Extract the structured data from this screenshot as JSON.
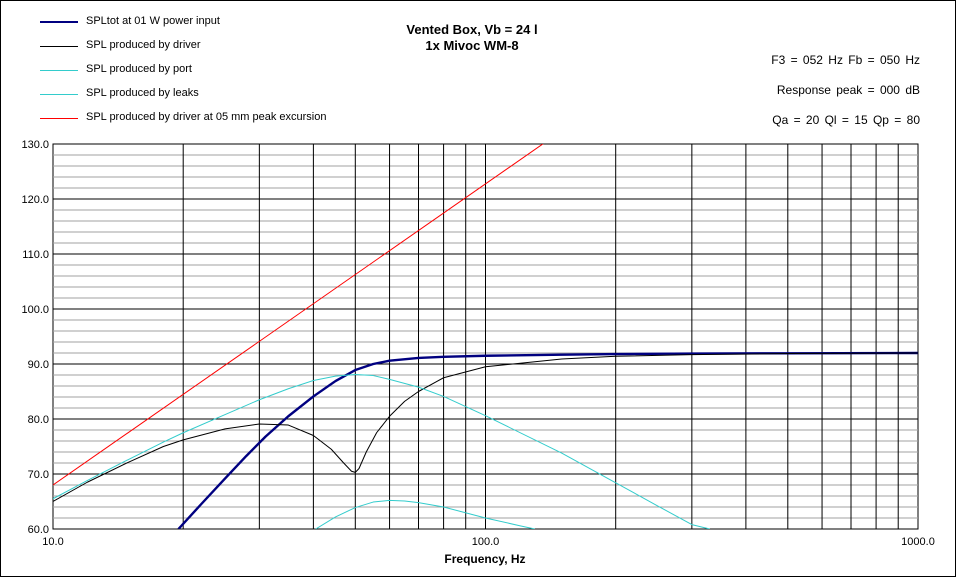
{
  "chart_data": {
    "type": "line",
    "title_line1": "Vented Box, Vb = 24 l",
    "title_line2": "1x Mivoc WM-8",
    "info": [
      "F3 = 052 Hz  Fb = 050 Hz",
      "Response  peak = 000 dB",
      "Qa = 20  Ql = 15  Qp = 80"
    ],
    "xlabel": "Frequency, Hz",
    "ylabel": "",
    "x_scale": "log",
    "xlim": [
      10,
      1000
    ],
    "ylim": [
      60,
      130
    ],
    "x_ticks": [
      "10.0",
      "100.0",
      "1000.0"
    ],
    "y_ticks": [
      "60.0",
      "70.0",
      "80.0",
      "90.0",
      "100.0",
      "110.0",
      "120.0",
      "130.0"
    ],
    "grid": true,
    "legend_position": "top-left",
    "series": [
      {
        "name": "SPLtot at 01 W power input",
        "color": "#000080",
        "thick": true,
        "x": [
          19.5,
          22,
          25,
          28,
          31,
          35,
          40,
          45,
          50,
          55,
          60,
          70,
          80,
          100,
          150,
          200,
          300,
          500,
          1000
        ],
        "y": [
          60,
          64.5,
          69.2,
          73.3,
          76.8,
          80.5,
          84.1,
          86.9,
          88.9,
          90,
          90.6,
          91.1,
          91.3,
          91.5,
          91.7,
          91.8,
          91.9,
          91.95,
          92
        ]
      },
      {
        "name": "SPL produced by driver",
        "color": "#000000",
        "thick": false,
        "x": [
          10,
          12,
          15,
          18,
          20,
          25,
          30,
          35,
          40,
          44,
          47,
          49,
          50,
          51,
          53,
          56,
          60,
          65,
          70,
          80,
          100,
          150,
          200,
          300,
          500,
          1000
        ],
        "y": [
          65,
          68.5,
          72.2,
          75,
          76.2,
          78.2,
          79.1,
          78.9,
          77,
          74.5,
          72,
          70.5,
          70.3,
          71,
          74,
          77.5,
          80.5,
          83.2,
          85,
          87.5,
          89.5,
          90.9,
          91.4,
          91.7,
          91.9,
          92
        ]
      },
      {
        "name": "SPL produced by port",
        "color": "#33cccc",
        "thick": false,
        "x": [
          10,
          12,
          15,
          18,
          20,
          25,
          30,
          35,
          40,
          45,
          50,
          55,
          60,
          70,
          80,
          100,
          150,
          200,
          250,
          300,
          330
        ],
        "y": [
          65.5,
          68.8,
          72.7,
          75.8,
          77.5,
          80.8,
          83.5,
          85.5,
          87,
          87.8,
          88.1,
          87.9,
          87.2,
          85.8,
          84.1,
          80.6,
          73.8,
          68.4,
          64.2,
          60.8,
          60
        ]
      },
      {
        "name": "SPL produced by leaks",
        "color": "#33cccc",
        "thick": false,
        "x": [
          40.5,
          45,
          50,
          55,
          60,
          65,
          70,
          80,
          100,
          120,
          130
        ],
        "y": [
          60,
          62.2,
          63.9,
          64.9,
          65.2,
          65.1,
          64.8,
          64,
          62,
          60.6,
          60
        ]
      },
      {
        "name": "SPL produced by driver at 05 mm peak excursion",
        "color": "#ff0000",
        "thick": false,
        "x": [
          10,
          1000
        ],
        "y": [
          68,
          177.5
        ]
      }
    ]
  }
}
